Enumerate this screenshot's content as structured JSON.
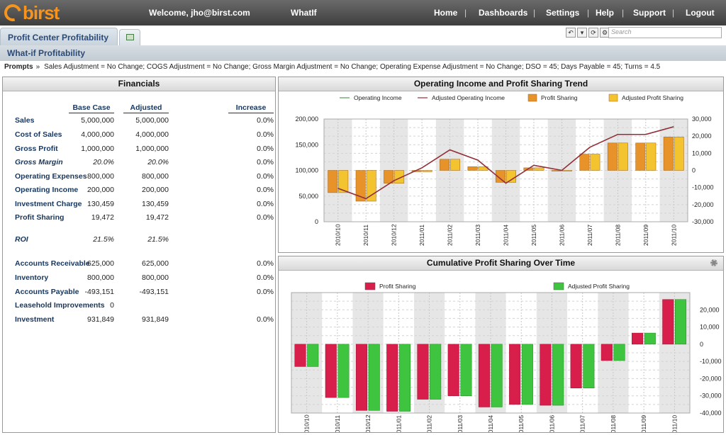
{
  "header": {
    "logo": "birst",
    "welcome": "Welcome, jho@birst.com",
    "whatif": "WhatIf",
    "nav": [
      "Home",
      "Dashboards",
      "Settings",
      "Help",
      "Support",
      "Logout"
    ],
    "accent": "#f7941d"
  },
  "tabs": {
    "active": "Profit Center Profitability",
    "search_placeholder": "Search"
  },
  "page": {
    "title": "What-if Profitability"
  },
  "prompts": {
    "label": "Prompts",
    "text": "Sales Adjustment = No Change; COGS Adjustment = No Change; Gross Margin Adjustment = No Change; Operating Expense Adjustment = No Change; DSO = 45; Days Payable = 45; Turns = 4.5"
  },
  "financials": {
    "title": "Financials",
    "columns": [
      "Base Case",
      "Adjusted",
      "Increase"
    ],
    "rows": [
      {
        "label": "Sales",
        "base": "5,000,000",
        "adj": "5,000,000",
        "inc": "0.0%"
      },
      {
        "label": "Cost of Sales",
        "base": "4,000,000",
        "adj": "4,000,000",
        "inc": "0.0%"
      },
      {
        "label": "Gross Profit",
        "base": "1,000,000",
        "adj": "1,000,000",
        "inc": "0.0%"
      },
      {
        "label": "Gross Margin",
        "base": "20.0%",
        "adj": "20.0%",
        "inc": "0.0%",
        "italic": true
      },
      {
        "label": "Operating Expenses",
        "base": "800,000",
        "adj": "800,000",
        "inc": "0.0%"
      },
      {
        "label": "Operating Income",
        "base": "200,000",
        "adj": "200,000",
        "inc": "0.0%"
      },
      {
        "label": "Investment Charge",
        "base": "130,459",
        "adj": "130,459",
        "inc": "0.0%"
      },
      {
        "label": "Profit Sharing",
        "base": "19,472",
        "adj": "19,472",
        "inc": "0.0%"
      },
      {
        "label": "ROI",
        "base": "21.5%",
        "adj": "21.5%",
        "inc": "",
        "italic": true
      },
      {
        "label": "Accounts Receivable",
        "base": "625,000",
        "adj": "625,000",
        "inc": "0.0%"
      },
      {
        "label": "Inventory",
        "base": "800,000",
        "adj": "800,000",
        "inc": "0.0%"
      },
      {
        "label": "Accounts Payable",
        "base": "-493,151",
        "adj": "-493,151",
        "inc": "0.0%"
      },
      {
        "label": "Leasehold Improvements",
        "base": "0",
        "adj": "",
        "inc": ""
      },
      {
        "label": "Investment",
        "base": "931,849",
        "adj": "931,849",
        "inc": "0.0%"
      }
    ]
  },
  "chart_data": [
    {
      "type": "bar",
      "title": "Operating Income and Profit Sharing Trend",
      "categories": [
        "2010/10",
        "2010/11",
        "2010/12",
        "2011/01",
        "2011/02",
        "2011/03",
        "2011/04",
        "2011/05",
        "2011/06",
        "2011/07",
        "2011/08",
        "2011/09",
        "2011/10"
      ],
      "legend": [
        "Operating Income",
        "Adjusted Operating Income",
        "Profit Sharing",
        "Adjusted Profit Sharing"
      ],
      "left_axis": {
        "ylim": [
          0,
          200000
        ],
        "ticks": [
          "0",
          "50,000",
          "100,000",
          "150,000",
          "200,000"
        ]
      },
      "right_axis": {
        "ylim": [
          -30000,
          30000
        ],
        "ticks": [
          "-30,000",
          "-20,000",
          "-10,000",
          "0",
          "10,000",
          "20,000",
          "30,000"
        ]
      },
      "series": [
        {
          "name": "Operating Income",
          "axis": "left",
          "type": "line",
          "color": "#5a9a5a",
          "values": [
            65000,
            45000,
            80000,
            105000,
            140000,
            120000,
            75000,
            110000,
            100000,
            145000,
            170000,
            170000,
            185000
          ]
        },
        {
          "name": "Adjusted Operating Income",
          "axis": "left",
          "type": "line",
          "color": "#9b2b3b",
          "values": [
            65000,
            45000,
            80000,
            105000,
            140000,
            120000,
            75000,
            110000,
            100000,
            145000,
            170000,
            170000,
            185000
          ]
        },
        {
          "name": "Profit Sharing",
          "axis": "right",
          "type": "bar",
          "color": "#e8922a",
          "values": [
            -13000,
            -18000,
            -7500,
            -800,
            6500,
            2200,
            -7000,
            1500,
            -400,
            9500,
            16000,
            16000,
            19500
          ]
        },
        {
          "name": "Adjusted Profit Sharing",
          "axis": "right",
          "type": "bar",
          "color": "#f4c430",
          "values": [
            -13000,
            -18000,
            -7500,
            -800,
            6500,
            2200,
            -7000,
            1500,
            -400,
            9500,
            16000,
            16000,
            19500
          ]
        }
      ],
      "legend_position": "top",
      "grid": true
    },
    {
      "type": "bar",
      "title": "Cumulative Profit Sharing Over Time",
      "categories": [
        "2010/10",
        "2010/11",
        "2010/12",
        "2011/01",
        "2011/02",
        "2011/03",
        "2011/04",
        "2011/05",
        "2011/06",
        "2011/07",
        "2011/08",
        "2011/09",
        "2011/10"
      ],
      "legend": [
        "Profit Sharing",
        "Adjusted Profit Sharing"
      ],
      "axis": {
        "ylim": [
          -40000,
          30000
        ],
        "ticks": [
          "-40,000",
          "-30,000",
          "-20,000",
          "-10,000",
          "0",
          "10,000",
          "20,000"
        ]
      },
      "series": [
        {
          "name": "Profit Sharing",
          "color": "#d81e4a",
          "values": [
            -13000,
            -31000,
            -38500,
            -39000,
            -32000,
            -30000,
            -36500,
            -35000,
            -35500,
            -25500,
            -9500,
            6500,
            26000
          ]
        },
        {
          "name": "Adjusted Profit Sharing",
          "color": "#3fc43f",
          "values": [
            -13000,
            -31000,
            -38500,
            -39000,
            -32000,
            -30000,
            -36500,
            -35000,
            -35500,
            -25500,
            -9500,
            6500,
            26000
          ]
        }
      ],
      "legend_position": "top",
      "grid": true
    }
  ]
}
